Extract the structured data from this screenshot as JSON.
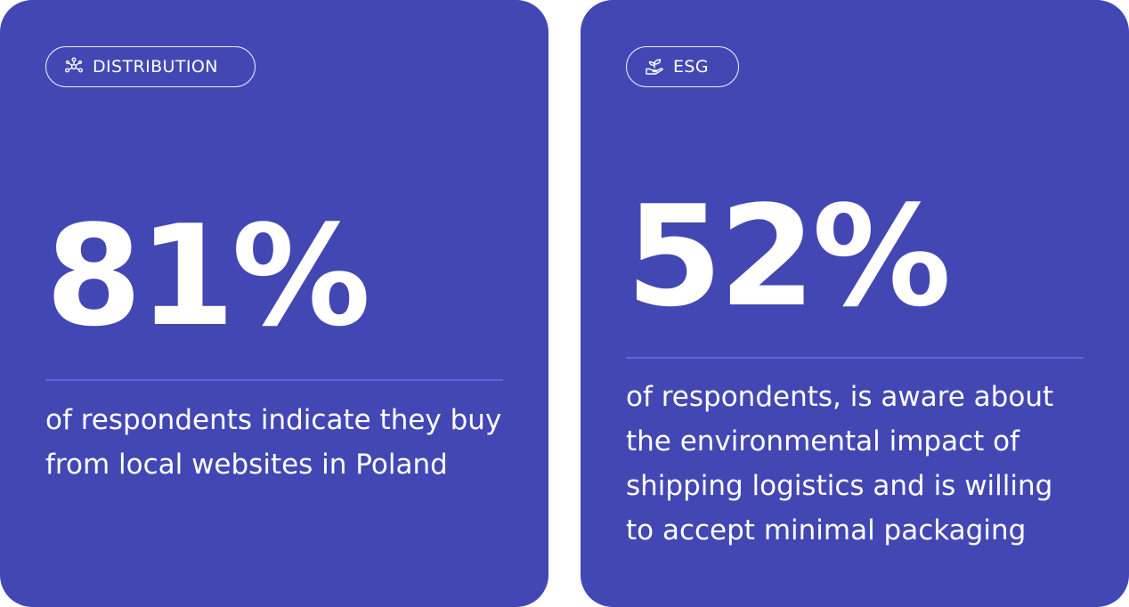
{
  "cards": [
    {
      "tag": {
        "icon": "network-nodes-icon",
        "label": "DISTRIBUTION"
      },
      "stat": "81%",
      "description": "of respondents indicate they buy from local websites in Poland"
    },
    {
      "tag": {
        "icon": "plant-in-hand-icon",
        "label": "ESG"
      },
      "stat": "52%",
      "description": "of respondents, is aware about the environmental impact of shipping logistics and is willing to accept minimal packaging"
    }
  ],
  "colors": {
    "card_background": "#4347b4",
    "divider": "#5b63e6",
    "text": "#ffffff"
  }
}
